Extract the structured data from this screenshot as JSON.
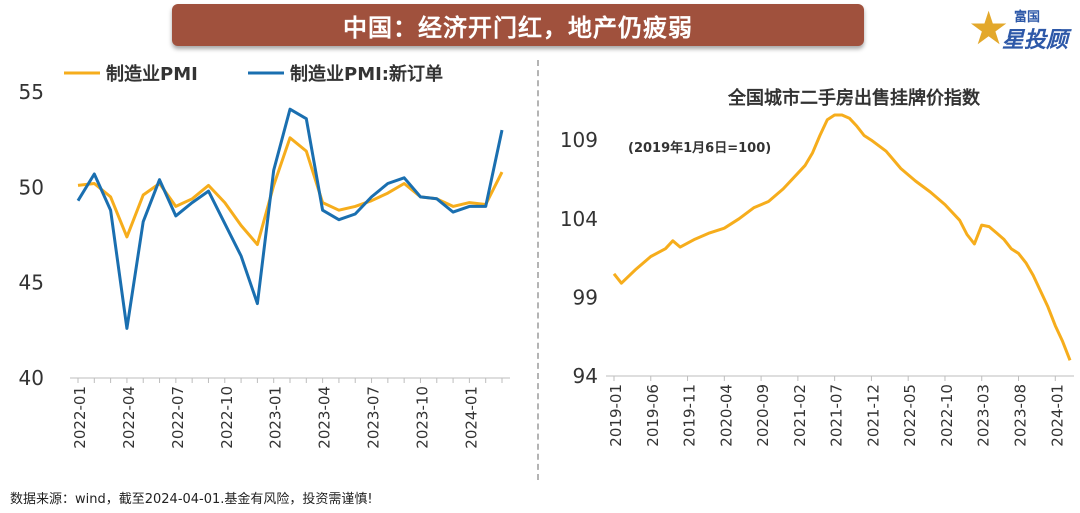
{
  "banner": {
    "title": "中国：经济开门红，地产仍疲弱"
  },
  "logo": {
    "line1": "富国",
    "line2": "星投顾",
    "icon": "star-icon"
  },
  "footer": {
    "source": "数据来源：wind，截至2024-04-01.基金有风险，投资需谨慎!"
  },
  "colors": {
    "orange": "#f6ad1c",
    "blue": "#1a6fb0",
    "banner": "#a0513d"
  },
  "chart_data": [
    {
      "type": "line",
      "title": "",
      "ylim": [
        40,
        55
      ],
      "yticks": [
        40,
        45,
        50,
        55
      ],
      "x": [
        "2022-01",
        "2022-02",
        "2022-03",
        "2022-04",
        "2022-05",
        "2022-06",
        "2022-07",
        "2022-08",
        "2022-09",
        "2022-10",
        "2022-11",
        "2022-12",
        "2023-01",
        "2023-02",
        "2023-03",
        "2023-04",
        "2023-05",
        "2023-06",
        "2023-07",
        "2023-08",
        "2023-09",
        "2023-10",
        "2023-11",
        "2023-12",
        "2024-01",
        "2024-02",
        "2024-03"
      ],
      "xticks": [
        "2022-01",
        "2022-04",
        "2022-07",
        "2022-10",
        "2023-01",
        "2023-04",
        "2023-07",
        "2023-10",
        "2024-01"
      ],
      "legend": "top-left",
      "series": [
        {
          "name": "制造业PMI",
          "color": "#f6ad1c",
          "values": [
            50.1,
            50.2,
            49.5,
            47.4,
            49.6,
            50.2,
            49.0,
            49.4,
            50.1,
            49.2,
            48.0,
            47.0,
            50.1,
            52.6,
            51.9,
            49.2,
            48.8,
            49.0,
            49.3,
            49.7,
            50.2,
            49.5,
            49.4,
            49.0,
            49.2,
            49.1,
            50.8
          ]
        },
        {
          "name": "制造业PMI:新订单",
          "color": "#1a6fb0",
          "values": [
            49.3,
            50.7,
            48.8,
            42.6,
            48.2,
            50.4,
            48.5,
            49.2,
            49.8,
            48.1,
            46.4,
            43.9,
            50.9,
            54.1,
            53.6,
            48.8,
            48.3,
            48.6,
            49.5,
            50.2,
            50.5,
            49.5,
            49.4,
            48.7,
            49.0,
            49.0,
            53.0
          ]
        }
      ]
    },
    {
      "type": "line",
      "title": "全国城市二手房出售挂牌价指数",
      "annotation": "(2019年1月6日=100)",
      "ylim": [
        94,
        112
      ],
      "yticks": [
        94,
        99,
        104,
        109
      ],
      "xticks": [
        "2019-01",
        "2019-06",
        "2019-11",
        "2020-04",
        "2020-09",
        "2021-02",
        "2021-07",
        "2021-12",
        "2022-05",
        "2022-10",
        "2023-03",
        "2023-08",
        "2024-01"
      ],
      "series": [
        {
          "name": "",
          "color": "#f6ad1c",
          "x": [
            "2019-01",
            "2019-02",
            "2019-04",
            "2019-06",
            "2019-08",
            "2019-09",
            "2019-10",
            "2019-12",
            "2020-02",
            "2020-04",
            "2020-06",
            "2020-08",
            "2020-10",
            "2020-12",
            "2021-02",
            "2021-03",
            "2021-04",
            "2021-05",
            "2021-06",
            "2021-07",
            "2021-08",
            "2021-09",
            "2021-10",
            "2021-11",
            "2021-12",
            "2022-02",
            "2022-04",
            "2022-06",
            "2022-08",
            "2022-10",
            "2022-12",
            "2023-01",
            "2023-02",
            "2023-03",
            "2023-04",
            "2023-05",
            "2023-06",
            "2023-07",
            "2023-08",
            "2023-09",
            "2023-10",
            "2023-12",
            "2024-01",
            "2024-02",
            "2024-03"
          ],
          "values": [
            100.5,
            99.9,
            100.8,
            101.6,
            102.1,
            102.6,
            102.2,
            102.7,
            103.1,
            103.4,
            104.0,
            104.7,
            105.1,
            105.9,
            106.9,
            107.4,
            108.2,
            109.3,
            110.3,
            110.6,
            110.6,
            110.4,
            109.9,
            109.3,
            109.0,
            108.3,
            107.2,
            106.4,
            105.7,
            104.9,
            103.9,
            103.0,
            102.4,
            103.6,
            103.5,
            103.1,
            102.7,
            102.1,
            101.8,
            101.2,
            100.4,
            98.4,
            97.2,
            96.2,
            95.0
          ]
        }
      ]
    }
  ]
}
